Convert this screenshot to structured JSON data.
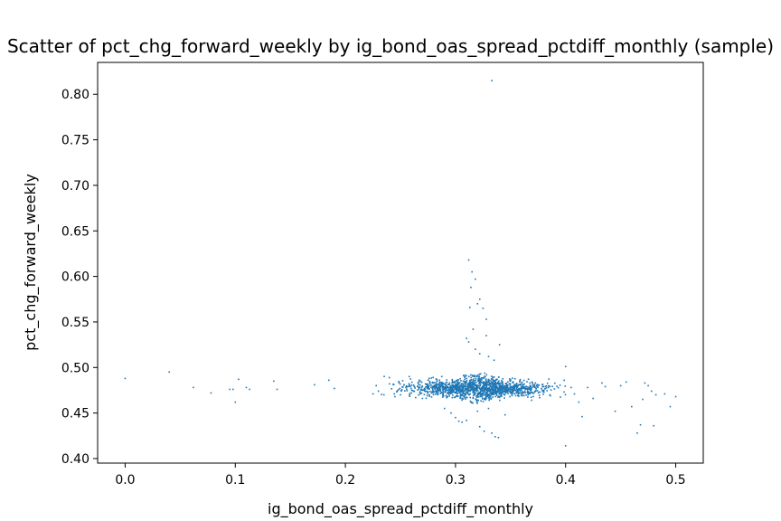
{
  "chart_data": {
    "type": "scatter",
    "title": "Scatter of pct_chg_forward_weekly by ig_bond_oas_spread_pctdiff_monthly (sample)",
    "xlabel": "ig_bond_oas_spread_pctdiff_monthly",
    "ylabel": "pct_chg_forward_weekly",
    "xlim": [
      -0.025,
      0.525
    ],
    "ylim": [
      0.395,
      0.835
    ],
    "xticks": [
      0.0,
      0.1,
      0.2,
      0.3,
      0.4,
      0.5
    ],
    "xtick_labels": [
      "0.0",
      "0.1",
      "0.2",
      "0.3",
      "0.4",
      "0.5"
    ],
    "yticks": [
      0.4,
      0.45,
      0.5,
      0.55,
      0.6,
      0.65,
      0.7,
      0.75,
      0.8
    ],
    "ytick_labels": [
      "0.40",
      "0.45",
      "0.50",
      "0.55",
      "0.60",
      "0.65",
      "0.70",
      "0.75",
      "0.80"
    ],
    "grid": false,
    "marker_color": "#1f77b4",
    "series": [
      {
        "points": [
          [
            0.0,
            0.488
          ],
          [
            0.04,
            0.495
          ],
          [
            0.062,
            0.478
          ],
          [
            0.078,
            0.472
          ],
          [
            0.095,
            0.476
          ],
          [
            0.098,
            0.476
          ],
          [
            0.1,
            0.462
          ],
          [
            0.103,
            0.487
          ],
          [
            0.11,
            0.478
          ],
          [
            0.113,
            0.476
          ],
          [
            0.135,
            0.485
          ],
          [
            0.138,
            0.476
          ],
          [
            0.172,
            0.481
          ],
          [
            0.185,
            0.486
          ],
          [
            0.19,
            0.477
          ],
          [
            0.333,
            0.815
          ],
          [
            0.312,
            0.618
          ],
          [
            0.315,
            0.605
          ],
          [
            0.318,
            0.597
          ],
          [
            0.322,
            0.575
          ],
          [
            0.32,
            0.57
          ],
          [
            0.314,
            0.588
          ],
          [
            0.325,
            0.565
          ],
          [
            0.313,
            0.566
          ],
          [
            0.328,
            0.553
          ],
          [
            0.31,
            0.532
          ],
          [
            0.312,
            0.528
          ],
          [
            0.318,
            0.52
          ],
          [
            0.322,
            0.515
          ],
          [
            0.33,
            0.512
          ],
          [
            0.335,
            0.508
          ],
          [
            0.34,
            0.525
          ],
          [
            0.328,
            0.535
          ],
          [
            0.316,
            0.542
          ],
          [
            0.296,
            0.45
          ],
          [
            0.3,
            0.445
          ],
          [
            0.303,
            0.441
          ],
          [
            0.306,
            0.44
          ],
          [
            0.31,
            0.442
          ],
          [
            0.322,
            0.435
          ],
          [
            0.326,
            0.43
          ],
          [
            0.333,
            0.428
          ],
          [
            0.336,
            0.424
          ],
          [
            0.339,
            0.423
          ],
          [
            0.33,
            0.455
          ],
          [
            0.345,
            0.448
          ],
          [
            0.32,
            0.452
          ],
          [
            0.29,
            0.455
          ],
          [
            0.4,
            0.501
          ],
          [
            0.405,
            0.478
          ],
          [
            0.408,
            0.471
          ],
          [
            0.412,
            0.462
          ],
          [
            0.415,
            0.446
          ],
          [
            0.42,
            0.478
          ],
          [
            0.425,
            0.466
          ],
          [
            0.4,
            0.414
          ],
          [
            0.445,
            0.452
          ],
          [
            0.45,
            0.48
          ],
          [
            0.455,
            0.484
          ],
          [
            0.46,
            0.457
          ],
          [
            0.465,
            0.428
          ],
          [
            0.468,
            0.437
          ],
          [
            0.47,
            0.465
          ],
          [
            0.472,
            0.483
          ],
          [
            0.475,
            0.48
          ],
          [
            0.478,
            0.474
          ],
          [
            0.48,
            0.436
          ],
          [
            0.482,
            0.47
          ],
          [
            0.49,
            0.471
          ],
          [
            0.495,
            0.457
          ],
          [
            0.5,
            0.468
          ],
          [
            0.433,
            0.483
          ],
          [
            0.436,
            0.479
          ],
          [
            0.23,
            0.474
          ],
          [
            0.235,
            0.47
          ],
          [
            0.228,
            0.48
          ],
          [
            0.24,
            0.482
          ],
          [
            0.245,
            0.468
          ],
          [
            0.255,
            0.478
          ],
          [
            0.262,
            0.474
          ],
          [
            0.27,
            0.466
          ],
          [
            0.25,
            0.47
          ],
          [
            0.258,
            0.49
          ]
        ]
      }
    ],
    "dense_cluster": {
      "x_mean": 0.32,
      "x_spread": 0.032,
      "y_mean": 0.4775,
      "y_spread": 0.0045,
      "n_points": 1500
    }
  }
}
